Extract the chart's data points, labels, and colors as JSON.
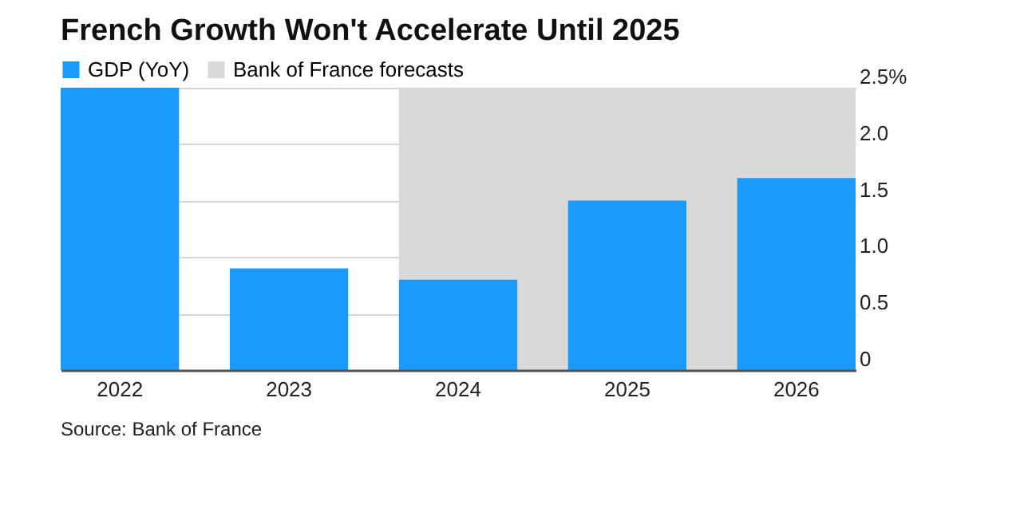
{
  "chart_data": {
    "type": "bar",
    "title": "French Growth Won't Accelerate Until 2025",
    "categories": [
      "2022",
      "2023",
      "2024",
      "2025",
      "2026"
    ],
    "series": [
      {
        "name": "GDP (YoY)",
        "color": "#1a9bfc",
        "values": [
          2.5,
          0.9,
          0.8,
          1.5,
          1.7
        ]
      }
    ],
    "ylim": [
      0,
      2.5
    ],
    "yticks": [
      0,
      0.5,
      {
        "value": 1,
        "label": "1.0"
      },
      1.5,
      {
        "value": 2,
        "label": "2.0"
      },
      {
        "value": 2.5,
        "label": "2.5%"
      }
    ],
    "bands": [
      {
        "axis": "x",
        "from": "2024",
        "to": "2026",
        "label": "Bank of France forecasts",
        "color": "#d9d9d9"
      }
    ],
    "grid": "y",
    "legend": "top left",
    "annotations": [
      "Source: Bank of France"
    ]
  }
}
